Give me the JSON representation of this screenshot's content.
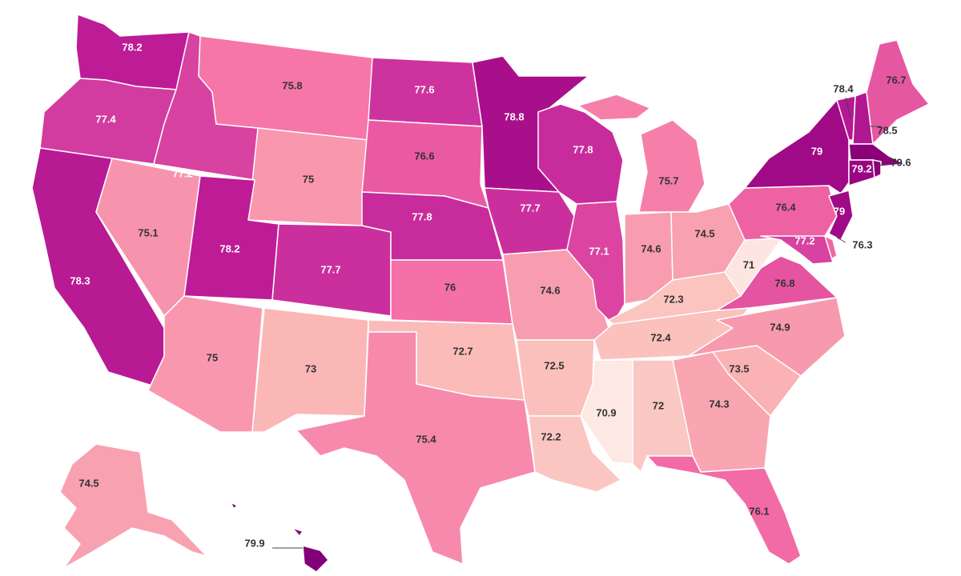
{
  "map": {
    "type": "choropleth-us-states",
    "colors": {
      "70.9": "#fde8e4",
      "71": "#fde6e2",
      "72": "#fbc7c2",
      "72.2": "#fbc6c1",
      "72.3": "#fbc4bf",
      "72.4": "#fbc1bd",
      "72.5": "#fbbfbc",
      "72.7": "#fbbbb9",
      "73": "#fab7b6",
      "73.5": "#fab2b4",
      "74.3": "#f9a5b2",
      "74.5": "#f8a1b0",
      "74.6": "#f89db0",
      "74.9": "#f89aae",
      "75": "#f897ae",
      "75.1": "#f793ad",
      "75.4": "#f78aac",
      "75.7": "#f67fa9",
      "75.8": "#f676a8",
      "76": "#f470a6",
      "76.1": "#f26aa6",
      "76.3": "#f066a5",
      "76.4": "#ee62a4",
      "76.6": "#ea5aa3",
      "76.7": "#e657a2",
      "76.8": "#e454a1",
      "77.1": "#dc44a1",
      "77.2": "#d842a0",
      "77.4": "#d23ca0",
      "77.6": "#cd339e",
      "77.7": "#cb2f9d",
      "77.8": "#c82c9c",
      "78.2": "#bd1c96",
      "78.3": "#b81a94",
      "78.4": "#b41893",
      "78.5": "#b11791",
      "78.8": "#a90f8b",
      "79": "#a10a86",
      "79.2": "#990683",
      "79.6": "#8b0079",
      "79.9": "#82007a"
    },
    "states": [
      {
        "id": "WA",
        "value": "78.2"
      },
      {
        "id": "OR",
        "value": "77.4"
      },
      {
        "id": "CA",
        "value": "78.3"
      },
      {
        "id": "ID",
        "value": "77.2"
      },
      {
        "id": "NV",
        "value": "75.1"
      },
      {
        "id": "MT",
        "value": "75.8"
      },
      {
        "id": "WY",
        "value": "75"
      },
      {
        "id": "UT",
        "value": "78.2"
      },
      {
        "id": "AZ",
        "value": "75"
      },
      {
        "id": "CO",
        "value": "77.7"
      },
      {
        "id": "NM",
        "value": "73"
      },
      {
        "id": "ND",
        "value": "77.6"
      },
      {
        "id": "SD",
        "value": "76.6"
      },
      {
        "id": "NE",
        "value": "77.8"
      },
      {
        "id": "KS",
        "value": "76"
      },
      {
        "id": "OK",
        "value": "72.7"
      },
      {
        "id": "TX",
        "value": "75.4"
      },
      {
        "id": "MN",
        "value": "78.8"
      },
      {
        "id": "IA",
        "value": "77.7"
      },
      {
        "id": "MO",
        "value": "74.6"
      },
      {
        "id": "AR",
        "value": "72.5"
      },
      {
        "id": "LA",
        "value": "72.2"
      },
      {
        "id": "WI",
        "value": "77.8"
      },
      {
        "id": "IL",
        "value": "77.1"
      },
      {
        "id": "MI",
        "value": "75.7"
      },
      {
        "id": "IN",
        "value": "74.6"
      },
      {
        "id": "OH",
        "value": "74.5"
      },
      {
        "id": "KY",
        "value": "72.3"
      },
      {
        "id": "TN",
        "value": "72.4"
      },
      {
        "id": "MS",
        "value": "70.9"
      },
      {
        "id": "AL",
        "value": "72"
      },
      {
        "id": "GA",
        "value": "74.3"
      },
      {
        "id": "FL",
        "value": "76.1"
      },
      {
        "id": "SC",
        "value": "73.5"
      },
      {
        "id": "NC",
        "value": "74.9"
      },
      {
        "id": "VA",
        "value": "76.8"
      },
      {
        "id": "WV",
        "value": "71"
      },
      {
        "id": "PA",
        "value": "76.4"
      },
      {
        "id": "NY",
        "value": "79"
      },
      {
        "id": "VT",
        "value": "78.4"
      },
      {
        "id": "NH",
        "value": "78.5"
      },
      {
        "id": "ME",
        "value": "76.7"
      },
      {
        "id": "MA",
        "value": "79.6"
      },
      {
        "id": "CT",
        "value": "79.2"
      },
      {
        "id": "RI",
        "value": "79.6"
      },
      {
        "id": "NJ",
        "value": "79"
      },
      {
        "id": "DE",
        "value": "76.3"
      },
      {
        "id": "MD",
        "value": "77.2"
      },
      {
        "id": "AK",
        "value": "74.5"
      },
      {
        "id": "HI",
        "value": "79.9"
      }
    ]
  }
}
